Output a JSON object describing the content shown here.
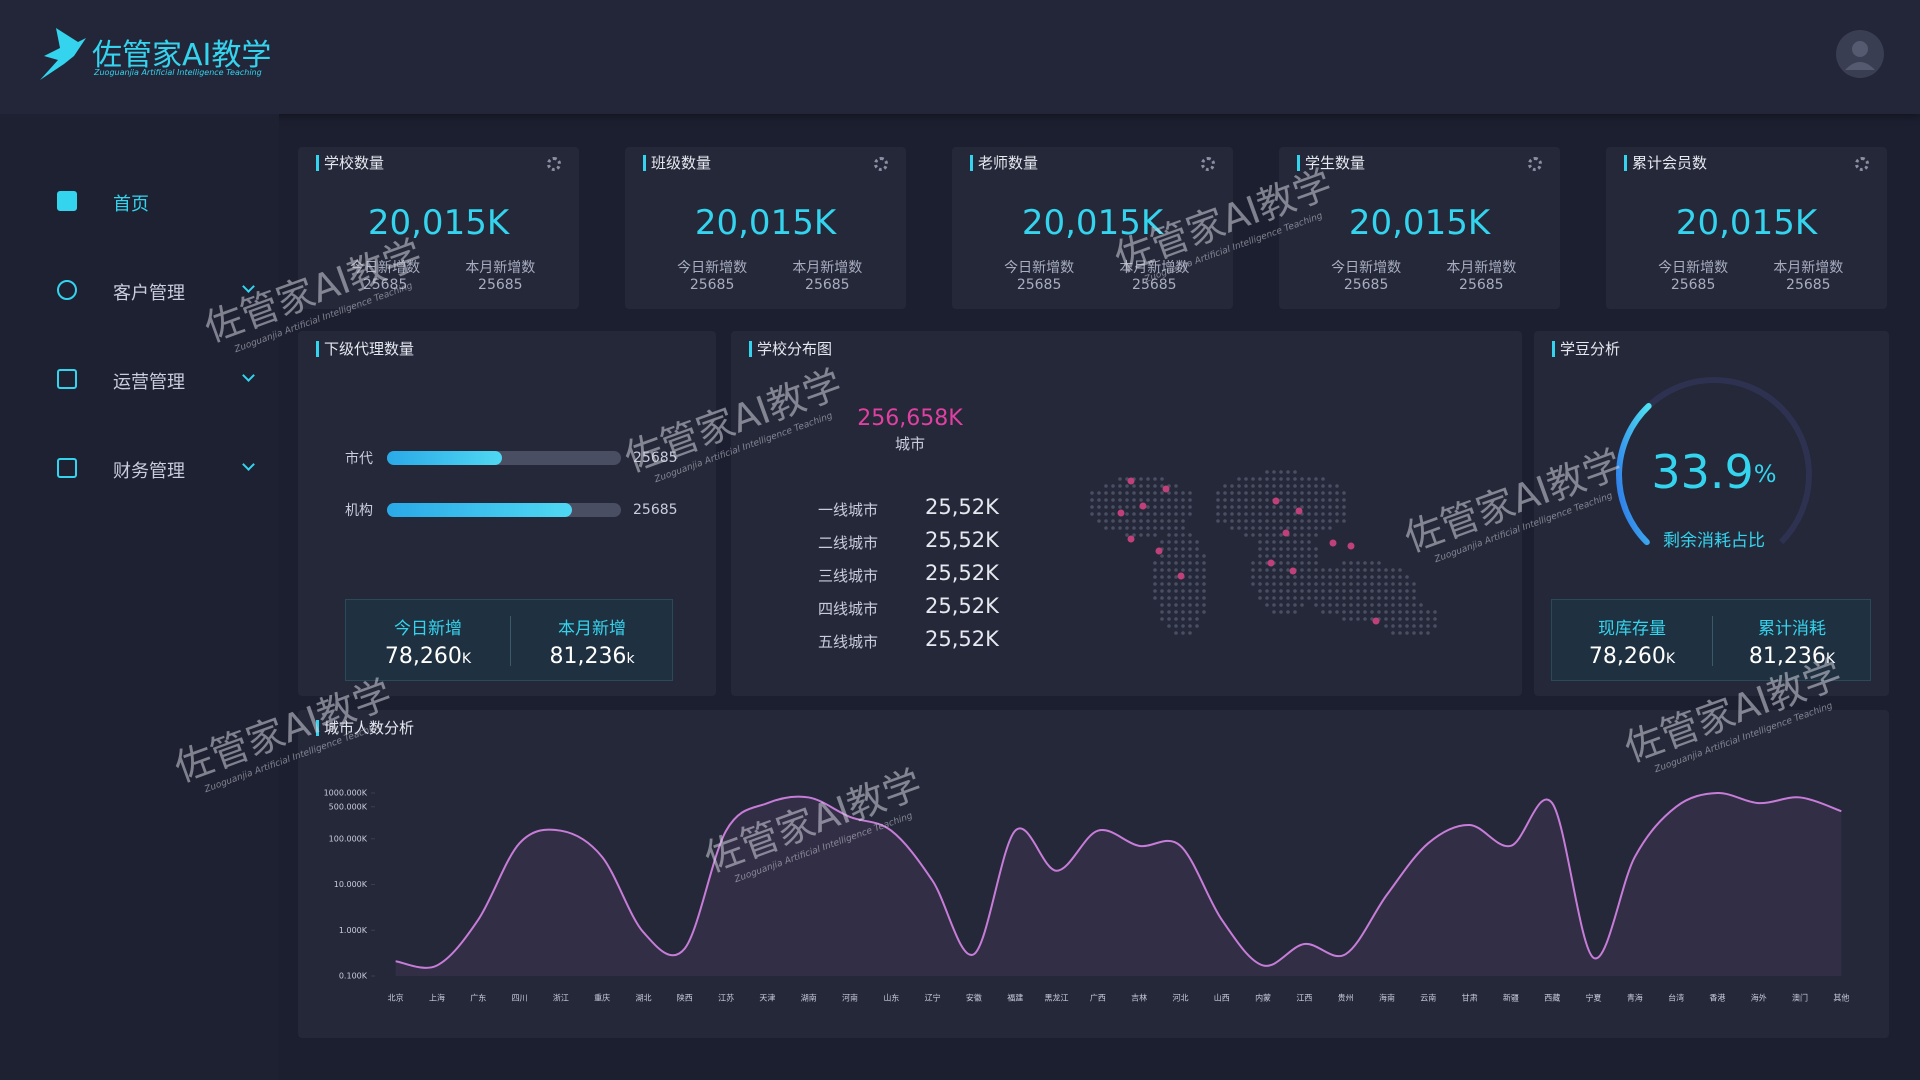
{
  "header": {
    "logo_text": "佐管家AI教学",
    "logo_subtitle": "Zuoguanjia Artificial Intelligence Teaching"
  },
  "nav": [
    {
      "label": "首页"
    },
    {
      "label": "客户管理"
    },
    {
      "label": "运营管理"
    },
    {
      "label": "财务管理"
    }
  ],
  "stat_cards": [
    {
      "title": "学校数量",
      "value": "20,015K",
      "today_label": "今日新增数",
      "today_value": "25685",
      "month_label": "本月新增数",
      "month_value": "25685"
    },
    {
      "title": "班级数量",
      "value": "20,015K",
      "today_label": "今日新增数",
      "today_value": "25685",
      "month_label": "本月新增数",
      "month_value": "25685"
    },
    {
      "title": "老师数量",
      "value": "20,015K",
      "today_label": "今日新增数",
      "today_value": "25685",
      "month_label": "本月新增数",
      "month_value": "25685"
    },
    {
      "title": "学生数量",
      "value": "20,015K",
      "today_label": "今日新增数",
      "today_value": "25685",
      "month_label": "本月新增数",
      "month_value": "25685"
    },
    {
      "title": "累计会员数",
      "value": "20,015K",
      "today_label": "今日新增数",
      "today_value": "25685",
      "month_label": "本月新增数",
      "month_value": "25685"
    }
  ],
  "agents": {
    "title": "下级代理数量",
    "bars": [
      {
        "label": "市代",
        "value_label": "25685",
        "progress": 49
      },
      {
        "label": "机构",
        "value_label": "25685",
        "progress": 79
      }
    ],
    "summary": [
      {
        "label": "今日新增",
        "value": "78,260",
        "unit": "K"
      },
      {
        "label": "本月新增",
        "value": "81,236",
        "unit": "k"
      }
    ]
  },
  "school_map": {
    "title": "学校分布图",
    "total": "256,658K",
    "total_label": "城市",
    "tiers": [
      {
        "label": "一线城市",
        "value": "25,52K"
      },
      {
        "label": "二线城市",
        "value": "25,52K"
      },
      {
        "label": "三线城市",
        "value": "25,52K"
      },
      {
        "label": "四线城市",
        "value": "25,52K"
      },
      {
        "label": "五线城市",
        "value": "25,52K"
      }
    ]
  },
  "beans": {
    "title": "学豆分析",
    "gauge_value": 33.9,
    "gauge_unit": "%",
    "gauge_label": "剩余消耗占比",
    "summary": [
      {
        "label": "现库存量",
        "value": "78,260",
        "unit": "K"
      },
      {
        "label": "累计消耗",
        "value": "81,236",
        "unit": "K"
      }
    ]
  },
  "watermark": {
    "text": "佐管家AI教学",
    "subtitle": "Zuoguanjia Artificial Intelligence Teaching"
  },
  "chart_data": {
    "type": "line",
    "title": "城市人数分析",
    "color": "#c77dd8",
    "log_scale": true,
    "categories": [
      "北京",
      "上海",
      "广东",
      "四川",
      "浙江",
      "重庆",
      "湖北",
      "陕西",
      "江苏",
      "天津",
      "湖南",
      "河南",
      "山东",
      "辽宁",
      "安徽",
      "福建",
      "黑龙江",
      "广西",
      "吉林",
      "河北",
      "山西",
      "内蒙",
      "江西",
      "贵州",
      "海南",
      "云南",
      "甘肃",
      "新疆",
      "西藏",
      "宁夏",
      "青海",
      "台湾",
      "香港",
      "海外",
      "澳门",
      "其他"
    ],
    "values": [
      0.21,
      0.17,
      1.7,
      80,
      150,
      40,
      0.9,
      0.4,
      150,
      600,
      800,
      300,
      150,
      12,
      0.3,
      150,
      20,
      150,
      70,
      70,
      1.7,
      0.17,
      0.5,
      0.3,
      6,
      80,
      200,
      70,
      600,
      0.25,
      40,
      500,
      1000,
      600,
      800,
      400
    ],
    "ylim": [
      0.1,
      1000
    ],
    "yticks": [
      {
        "value": 0.1,
        "label": "0.100K"
      },
      {
        "value": 1,
        "label": "1.000K"
      },
      {
        "value": 10,
        "label": "10.000K"
      },
      {
        "value": 100,
        "label": "100.000K"
      },
      {
        "value": 500,
        "label": "500.000K"
      },
      {
        "value": 1000,
        "label": "1000.000K"
      }
    ]
  }
}
